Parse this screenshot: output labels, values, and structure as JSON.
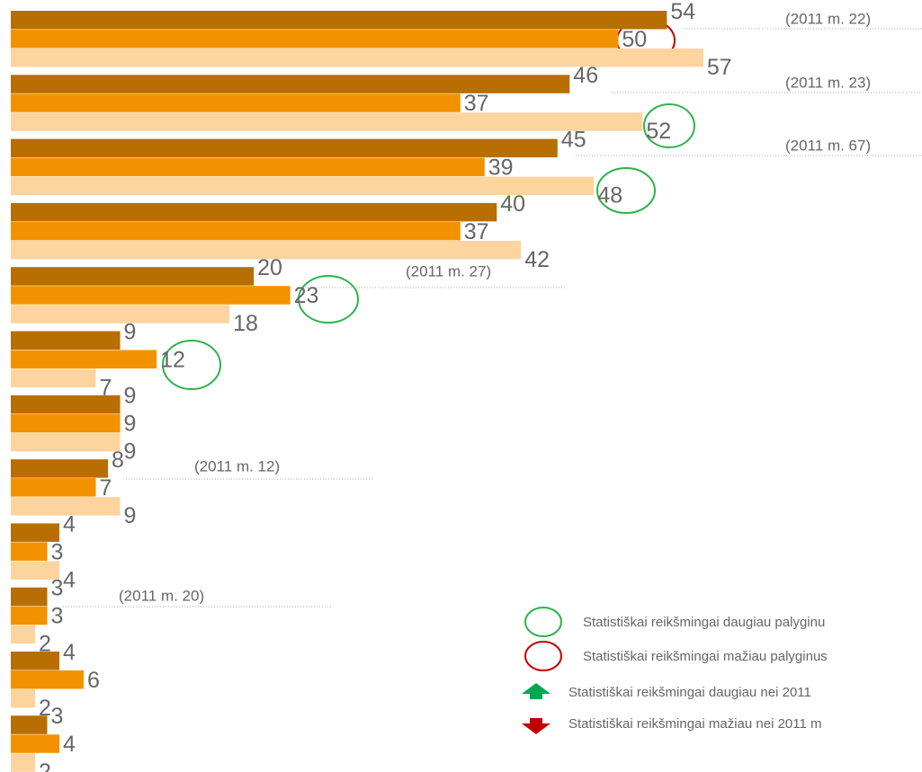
{
  "chart_data": {
    "type": "barh",
    "series": [
      {
        "color": "#b86e00",
        "values": [
          54,
          46,
          45,
          40,
          20,
          9,
          9,
          8,
          4,
          3,
          4,
          3
        ]
      },
      {
        "color": "#f39200",
        "values": [
          50,
          37,
          39,
          37,
          23,
          12,
          9,
          7,
          3,
          3,
          6,
          4
        ]
      },
      {
        "color": "#fdd49e",
        "values": [
          57,
          52,
          48,
          42,
          18,
          7,
          9,
          9,
          4,
          2,
          2,
          2
        ]
      }
    ],
    "xlim": [
      0,
      75
    ],
    "annotations": [
      "(2011 m. 22)",
      "(2011 m. 23)",
      "(2011 m. 67)",
      "(2011 m. 27)",
      "(2011 m. 12)",
      "(2011 m. 20)"
    ],
    "legend": [
      "Statistiškai reikšmingai daugiau palyginu",
      "Statistiškai reikšmingai mažiau palyginus",
      "Statistiškai reikšmingai daugiau nei 2011",
      "Statistiškai reikšmingai mažiau nei 2011 m"
    ]
  }
}
